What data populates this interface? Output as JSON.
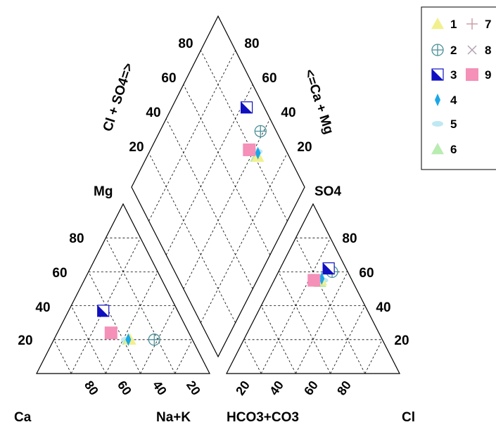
{
  "chart_data": {
    "type": "scatter",
    "subtype": "piper-diagram",
    "title": "",
    "grid": true,
    "legend_position": "top-right",
    "labels": {
      "ca": "Ca",
      "nak": "Na+K",
      "hco3": "HCO3+CO3",
      "cl": "Cl",
      "mg": "Mg",
      "so4": "SO4",
      "cl_so4": "Cl + SO4=>",
      "ca_mg": "<=Ca + Mg"
    },
    "ticks": [
      "20",
      "40",
      "60",
      "80"
    ],
    "series": [
      {
        "name": "1",
        "marker": "triangle",
        "color": "#f2f08c",
        "cation": {
          "mg": 20,
          "nak": 44
        },
        "anion": {
          "so4": 55,
          "cl": 27
        },
        "diamond": {
          "cl_so4": 82,
          "ca_mg": 36
        }
      },
      {
        "name": "2",
        "marker": "circle-plus",
        "color": "#4b8f99",
        "cation": {
          "mg": 20,
          "nak": 58
        },
        "anion": {
          "so4": 60,
          "cl": 31
        },
        "diamond": {
          "cl_so4": 91,
          "ca_mg": 42
        }
      },
      {
        "name": "3",
        "marker": "half-square",
        "color": "#1010c0",
        "cation": {
          "mg": 37,
          "nak": 20
        },
        "anion": {
          "so4": 62,
          "cl": 28
        },
        "diamond": {
          "cl_so4": 90,
          "ca_mg": 57
        }
      },
      {
        "name": "4",
        "marker": "diamond",
        "color": "#1aa7e8",
        "cation": {
          "mg": 20,
          "nak": 43
        },
        "anion": {
          "so4": 56,
          "cl": 27
        },
        "diamond": {
          "cl_so4": 83,
          "ca_mg": 37
        }
      },
      {
        "name": "5",
        "marker": "ellipse",
        "color": "#bfe8f2",
        "cation": {
          "mg": 20,
          "nak": 42
        },
        "anion": {
          "so4": 55,
          "cl": 28
        },
        "diamond": {
          "cl_so4": 83,
          "ca_mg": 38
        }
      },
      {
        "name": "6",
        "marker": "triangle",
        "color": "#b8ecb0",
        "cation": {
          "mg": 20,
          "nak": 43
        },
        "anion": {
          "so4": 54,
          "cl": 27
        },
        "diamond": {
          "cl_so4": 81,
          "ca_mg": 37
        }
      },
      {
        "name": "7",
        "marker": "plus",
        "color": "#c89aa6",
        "cation": null,
        "anion": null,
        "diamond": null
      },
      {
        "name": "8",
        "marker": "cross",
        "color": "#b0a0b0",
        "cation": null,
        "anion": null,
        "diamond": null
      },
      {
        "name": "9",
        "marker": "square",
        "color": "#f590b8",
        "cation": {
          "mg": 24,
          "nak": 31
        },
        "anion": {
          "so4": 55,
          "cl": 23
        },
        "diamond": {
          "cl_so4": 79,
          "ca_mg": 43
        }
      }
    ]
  }
}
